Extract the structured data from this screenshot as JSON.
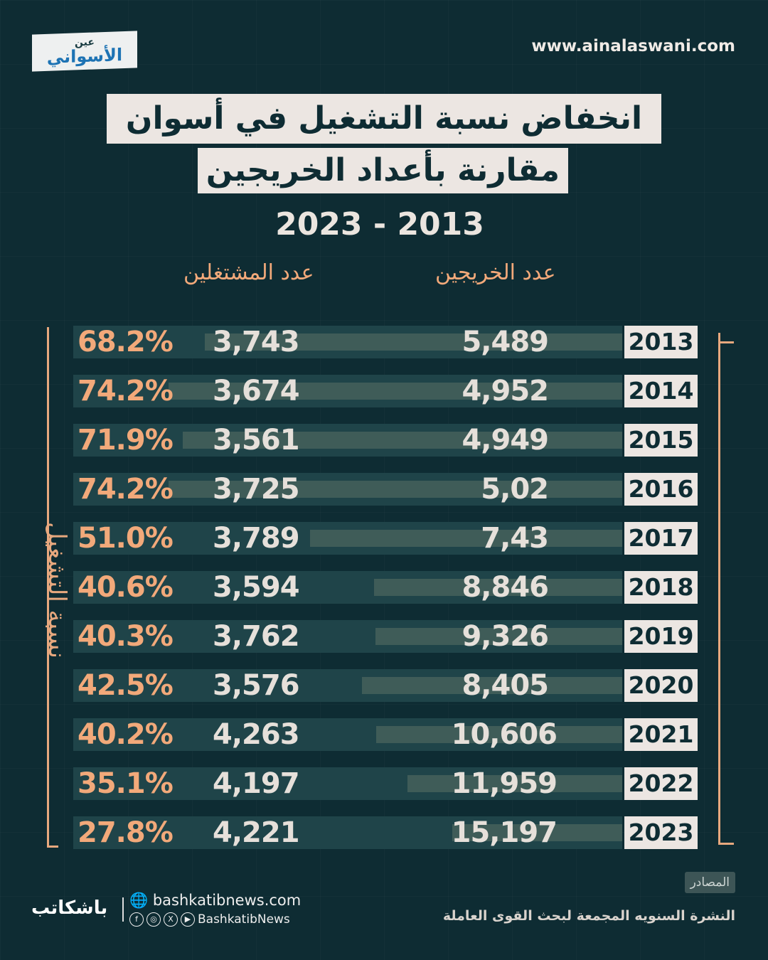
{
  "header": {
    "logo_text_small": "عين",
    "logo_text_big": "الأسواني",
    "website": "www.ainalaswani.com"
  },
  "chart_data": {
    "type": "table",
    "title": "انخفاض نسبة التشغيل في أسوان",
    "subtitle": "مقارنة بأعداد الخريجين",
    "period": "2023 - 2013",
    "column_labels": {
      "graduates": "عدد الخريجين",
      "employed": "عدد المشتغلين",
      "employment_rate": "نسبة التشغيل"
    },
    "categories": [
      "2013",
      "2014",
      "2015",
      "2016",
      "2017",
      "2018",
      "2019",
      "2020",
      "2021",
      "2022",
      "2023"
    ],
    "series": [
      {
        "name": "عدد الخريجين",
        "values": [
          "5,489",
          "4,952",
          "4,949",
          "5,02",
          "7,43",
          "8,846",
          "9,326",
          "8,405",
          "10,606",
          "11,959",
          "15,197"
        ]
      },
      {
        "name": "عدد المشتغلين",
        "values": [
          "3,743",
          "3,674",
          "3,561",
          "3,725",
          "3,789",
          "3,594",
          "3,762",
          "3,576",
          "4,263",
          "4,197",
          "4,221"
        ]
      },
      {
        "name": "نسبة التشغيل",
        "values": [
          "68.2%",
          "74.2%",
          "71.9%",
          "74.2%",
          "51.0%",
          "40.6%",
          "40.3%",
          "42.5%",
          "40.2%",
          "35.1%",
          "27.8%"
        ]
      }
    ],
    "colors": {
      "background": "#0e2c33",
      "accent": "#f2a97a",
      "band": "#1f4449",
      "bar": "#3f5c58",
      "year_box": "#ece6e2"
    }
  },
  "footer": {
    "sources_label": "المصادر",
    "source": "النشرة السنويه المجمعة لبحث القوى العاملة",
    "brand": "باشكاتب",
    "website": "bashkatibnews.com",
    "social_handle": "BashkatibNews"
  }
}
